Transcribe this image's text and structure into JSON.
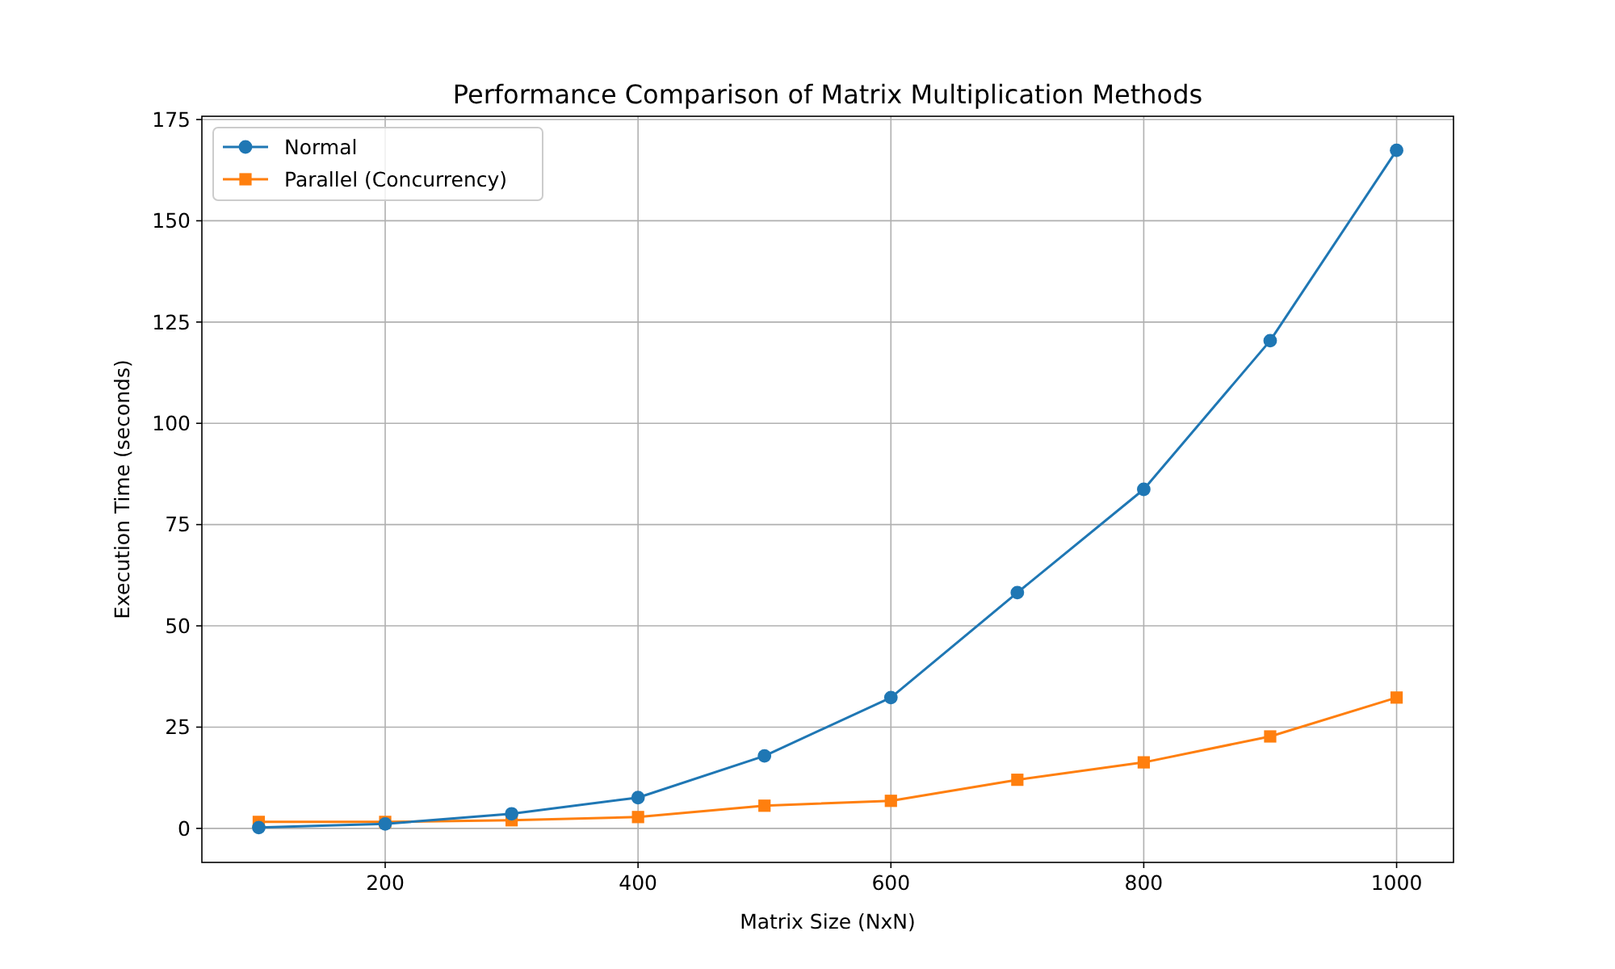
{
  "chart_data": {
    "type": "line",
    "title": "Performance Comparison of Matrix Multiplication Methods",
    "xlabel": "Matrix Size (NxN)",
    "ylabel": "Execution Time (seconds)",
    "x": [
      100,
      200,
      300,
      400,
      500,
      600,
      700,
      800,
      900,
      1000
    ],
    "series": [
      {
        "name": "Normal",
        "color": "#1f77b4",
        "marker": "circle",
        "values": [
          0.2,
          1.1,
          3.6,
          7.6,
          17.9,
          32.3,
          58.2,
          83.7,
          120.4,
          167.4
        ]
      },
      {
        "name": "Parallel (Concurrency)",
        "color": "#ff7f0e",
        "marker": "square",
        "values": [
          1.6,
          1.6,
          2.0,
          2.8,
          5.6,
          6.8,
          12.0,
          16.3,
          22.7,
          32.3
        ]
      }
    ],
    "xlim": [
      55,
      1045
    ],
    "xticks": [
      200,
      400,
      600,
      800,
      1000
    ],
    "ylim": [
      -8.4,
      175.8
    ],
    "yticks": [
      0,
      25,
      50,
      75,
      100,
      125,
      150,
      175
    ],
    "grid": true,
    "legend": "top left",
    "line_style": "solid"
  }
}
